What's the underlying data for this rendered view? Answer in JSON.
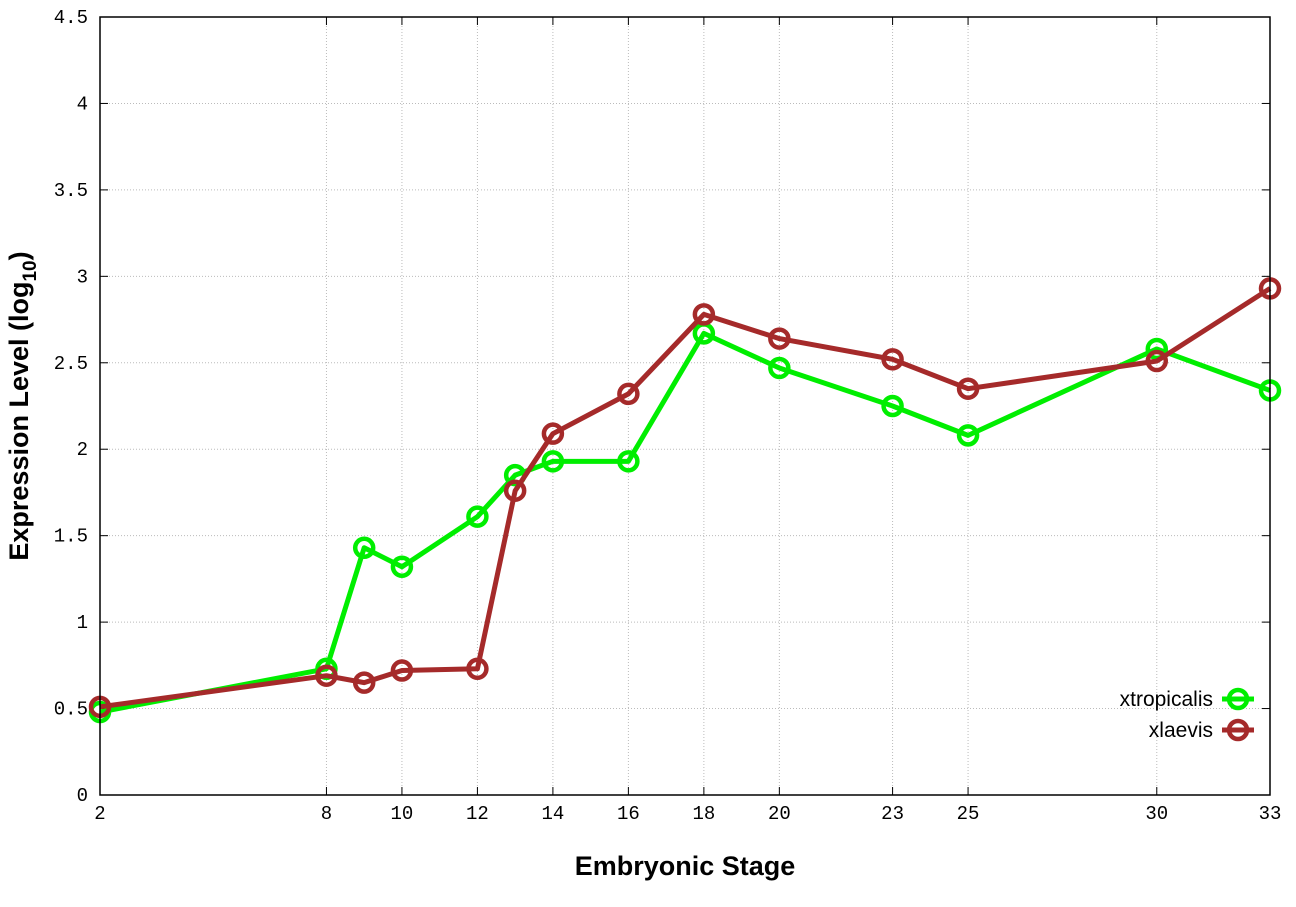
{
  "chart_data": {
    "type": "line",
    "xlabel": "Embryonic Stage",
    "ylabel": "Expression Level (log",
    "ylabel_sub": "10",
    "ylabel_end": ")",
    "xlim": [
      2,
      33
    ],
    "ylim": [
      0,
      4.5
    ],
    "x_ticks": [
      2,
      8,
      10,
      12,
      14,
      16,
      18,
      20,
      23,
      25,
      30,
      33
    ],
    "y_ticks": [
      "0",
      "0.5",
      "1",
      "1.5",
      "2",
      "2.5",
      "3",
      "3.5",
      "4",
      "4.5"
    ],
    "grid": true,
    "legend_placement": "bottom-right",
    "x": [
      2,
      8,
      9,
      10,
      12,
      13,
      14,
      16,
      18,
      20,
      23,
      25,
      30,
      33
    ],
    "series": [
      {
        "name": "xtropicalis",
        "color": "#00ee00",
        "values": [
          0.48,
          0.73,
          1.43,
          1.32,
          1.61,
          1.85,
          1.93,
          1.93,
          2.67,
          2.47,
          2.25,
          2.08,
          2.58,
          2.34
        ]
      },
      {
        "name": "xlaevis",
        "color": "#a52a2a",
        "values": [
          0.51,
          0.69,
          0.65,
          0.72,
          0.73,
          1.76,
          2.09,
          2.32,
          2.78,
          2.64,
          2.52,
          2.35,
          2.51,
          2.93
        ]
      }
    ]
  }
}
